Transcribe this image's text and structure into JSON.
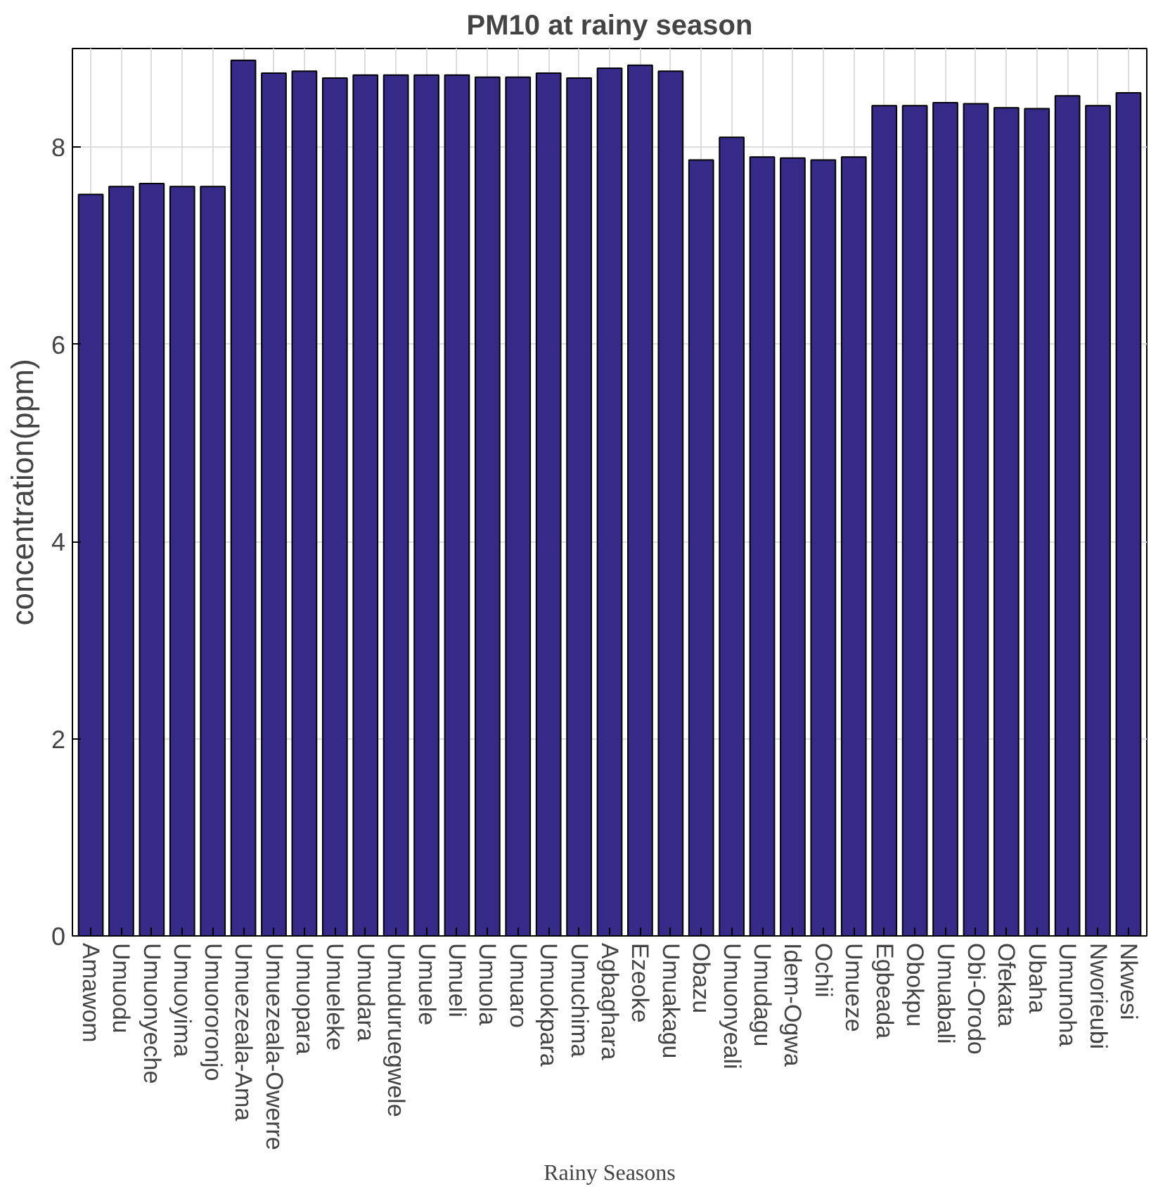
{
  "chart_data": {
    "type": "bar",
    "title": "PM10 at rainy season",
    "xlabel": "Rainy Seasons",
    "ylabel": "concentration(ppm)",
    "categories": [
      "Amawom",
      "Umuodu",
      "Umuonyeche",
      "Umuoyima",
      "Umuororonjo",
      "Umuezeala-Ama",
      "Umuezeala-Owerre",
      "Umuopara",
      "Umueleke",
      "Umudara",
      "Umuduruegwele",
      "Umuele",
      "Umueli",
      "Umuola",
      "Umuaro",
      "Umuokpara",
      "Umuchima",
      "Agbaghara",
      "Ezeoke",
      "Umuakagu",
      "Obazu",
      "Umuonyeali",
      "Umudagu",
      "Idem-Ogwa",
      "Ochii",
      "Umueze",
      "Egbeada",
      "Obokpu",
      "Umuabali",
      "Obi-Orodo",
      "Ofekata",
      "Ubaha",
      "Umunoha",
      "Nworieubi",
      "Nkwesi"
    ],
    "values": [
      7.52,
      7.6,
      7.63,
      7.6,
      7.6,
      8.88,
      8.75,
      8.77,
      8.7,
      8.73,
      8.73,
      8.73,
      8.73,
      8.71,
      8.71,
      8.75,
      8.7,
      8.8,
      8.83,
      8.77,
      7.87,
      8.1,
      7.9,
      7.89,
      7.87,
      7.9,
      8.42,
      8.42,
      8.45,
      8.44,
      8.4,
      8.39,
      8.52,
      8.42,
      8.55
    ],
    "color": "#352a87",
    "ylim": [
      0,
      9
    ],
    "yticks": [
      0,
      2,
      4,
      6,
      8
    ],
    "grid": true
  }
}
